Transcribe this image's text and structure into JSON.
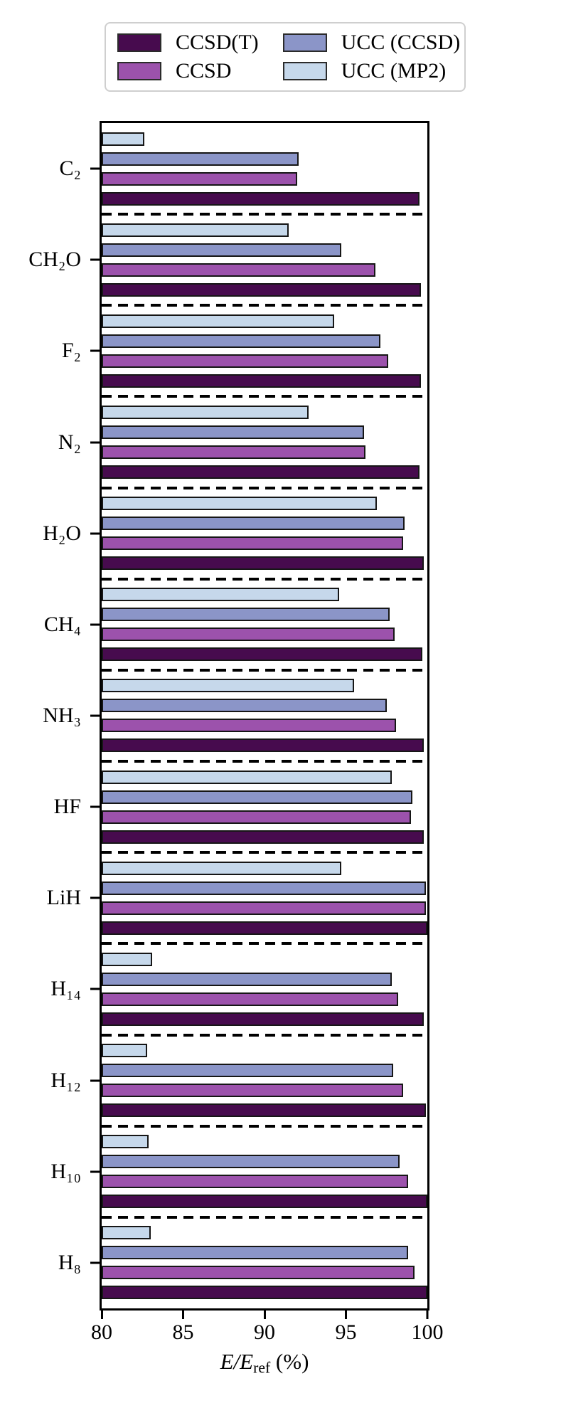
{
  "legend": {
    "entries": [
      {
        "label": "CCSD(T)",
        "color": "#470b4e"
      },
      {
        "label": "CCSD",
        "color": "#9c52ac"
      },
      {
        "label": "UCC (CCSD)",
        "color": "#8b95c8"
      },
      {
        "label": "UCC (MP2)",
        "color": "#c6d8eb"
      }
    ]
  },
  "axis": {
    "xlabel_main": "E/E",
    "xlabel_sub": "ref",
    "xlabel_unit": " (%)"
  },
  "chart_data": {
    "type": "bar",
    "orientation": "horizontal",
    "title": "",
    "xlabel": "E/E_ref (%)",
    "ylabel": "",
    "xlim": [
      80,
      100
    ],
    "xticks": [
      80,
      85,
      90,
      95,
      100
    ],
    "grid": false,
    "legend_position": "top",
    "group_separators": "dashed",
    "bar_order_top_to_bottom": [
      "UCC (MP2)",
      "UCC (CCSD)",
      "CCSD",
      "CCSD(T)"
    ],
    "categories": [
      "C₂",
      "CH₂O",
      "F₂",
      "N₂",
      "H₂O",
      "CH₄",
      "NH₃",
      "HF",
      "LiH",
      "H₁₄",
      "H₁₂",
      "H₁₀",
      "H₈"
    ],
    "series": [
      {
        "name": "CCSD(T)",
        "color": "#470b4e",
        "edge_color": "#161616",
        "values": [
          99.5,
          99.6,
          99.6,
          99.5,
          99.8,
          99.7,
          99.8,
          99.8,
          100.0,
          99.8,
          99.9,
          100.0,
          100.0
        ]
      },
      {
        "name": "CCSD",
        "color": "#9c52ac",
        "edge_color": "#161616",
        "values": [
          92.0,
          96.8,
          97.6,
          96.2,
          98.5,
          98.0,
          98.1,
          99.0,
          99.9,
          98.2,
          98.5,
          98.8,
          99.2
        ]
      },
      {
        "name": "UCC (CCSD)",
        "color": "#8b95c8",
        "edge_color": "#161616",
        "values": [
          92.1,
          94.7,
          97.1,
          96.1,
          98.6,
          97.7,
          97.5,
          99.1,
          99.9,
          97.8,
          97.9,
          98.3,
          98.8
        ]
      },
      {
        "name": "UCC (MP2)",
        "color": "#c6d8eb",
        "edge_color": "#161616",
        "values": [
          82.6,
          91.5,
          94.3,
          92.7,
          96.9,
          94.6,
          95.5,
          97.8,
          94.7,
          83.1,
          82.8,
          82.9,
          83.0
        ]
      }
    ]
  }
}
